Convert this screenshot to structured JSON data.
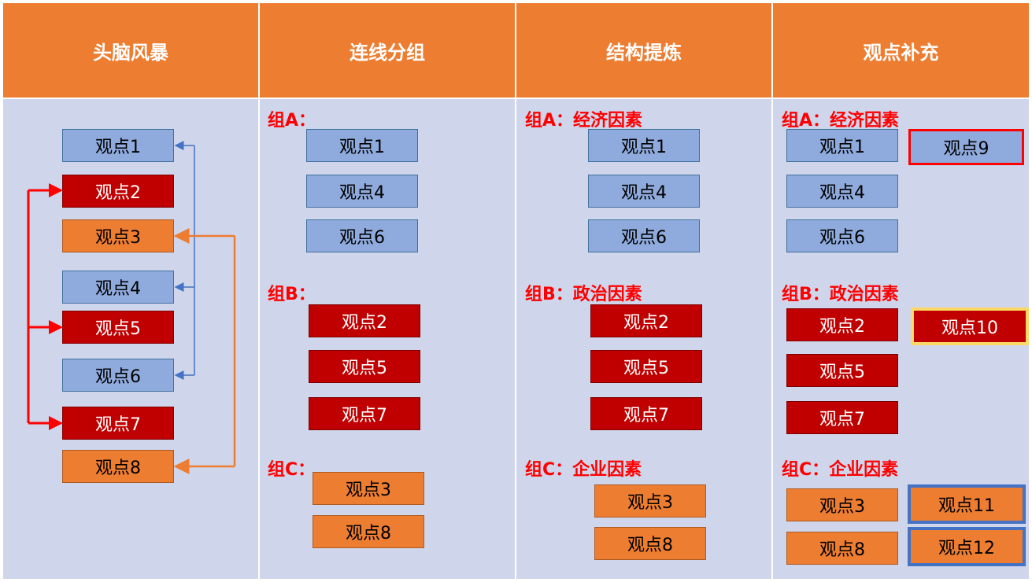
{
  "colors": {
    "header": "#ED7D31",
    "panel": "#CFD5EA",
    "economic": "#8FAADC",
    "political": "#C00000",
    "enterprise": "#ED7D31",
    "group_label": "#FF0000"
  },
  "headers": [
    "头脑风暴",
    "连线分组",
    "结构提炼",
    "观点补充"
  ],
  "brainstorm": [
    "观点1",
    "观点2",
    "观点3",
    "观点4",
    "观点5",
    "观点6",
    "观点7",
    "观点8"
  ],
  "grouping": {
    "a_label": "组A：",
    "a_items": [
      "观点1",
      "观点4",
      "观点6"
    ],
    "b_label": "组B：",
    "b_items": [
      "观点2",
      "观点5",
      "观点7"
    ],
    "c_label": "组C：",
    "c_items": [
      "观点3",
      "观点8"
    ]
  },
  "structure": {
    "a_label": "组A：经济因素",
    "a_items": [
      "观点1",
      "观点4",
      "观点6"
    ],
    "b_label": "组B：政治因素",
    "b_items": [
      "观点2",
      "观点5",
      "观点7"
    ],
    "c_label": "组C：企业因素",
    "c_items": [
      "观点3",
      "观点8"
    ]
  },
  "supplement": {
    "a_label": "组A：经济因素",
    "a_items": [
      "观点1",
      "观点4",
      "观点6"
    ],
    "a_extra": "观点9",
    "b_label": "组B：政治因素",
    "b_items": [
      "观点2",
      "观点5",
      "观点7"
    ],
    "b_extra": "观点10",
    "c_label": "组C：企业因素",
    "c_items": [
      "观点3",
      "观点8"
    ],
    "c_extra": [
      "观点11",
      "观点12"
    ]
  }
}
